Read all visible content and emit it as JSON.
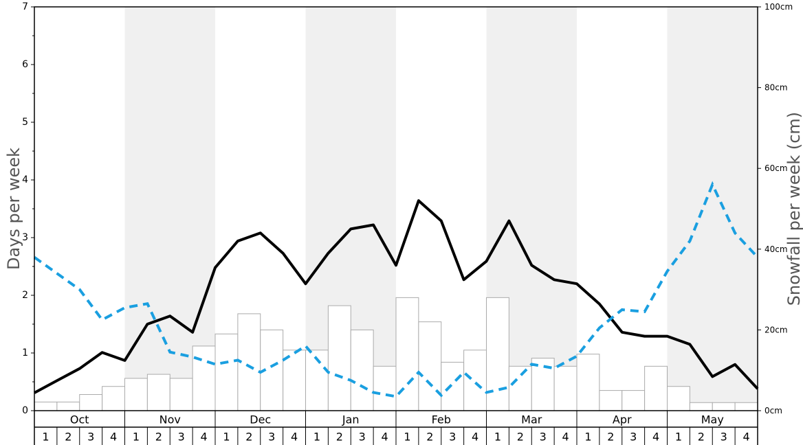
{
  "chart_data": {
    "type": "bar+line",
    "title": "",
    "ylabel_left": "Days per week",
    "ylabel_right": "Snowfall per week (cm)",
    "ylim_left": [
      0,
      7
    ],
    "ylim_right": [
      0,
      100
    ],
    "left_ticks": [
      "0",
      "1",
      "2",
      "3",
      "4",
      "5",
      "6",
      "7"
    ],
    "right_ticks": [
      "0cm",
      "20cm",
      "40cm",
      "60cm",
      "80cm",
      "100cm"
    ],
    "months": [
      "Oct",
      "Nov",
      "Dec",
      "Jan",
      "Feb",
      "Mar",
      "Apr",
      "May"
    ],
    "week_labels": [
      "1",
      "2",
      "3",
      "4"
    ],
    "shaded_months": [
      false,
      true,
      false,
      true,
      false,
      true,
      false,
      true
    ],
    "colors": {
      "bars_fill": "#ffffff",
      "bars_stroke": "#aaaaaa",
      "days_line": "#000000",
      "snow_line": "#1a9fe0",
      "shade": "#f0f0f0"
    },
    "series": [
      {
        "kind": "bar",
        "axis": "left",
        "values": [
          0.15,
          0.15,
          0.28,
          0.42,
          0.56,
          0.63,
          0.56,
          1.12,
          1.33,
          1.68,
          1.4,
          1.05,
          1.05,
          1.82,
          1.4,
          0.77,
          1.96,
          1.54,
          0.84,
          1.05,
          1.96,
          0.77,
          0.91,
          0.77,
          0.98,
          0.35,
          0.35,
          0.77,
          0.42,
          0.14,
          0.14,
          0.14
        ]
      },
      {
        "kind": "line",
        "axis": "left",
        "style": "solid",
        "values": [
          0.31,
          0.52,
          0.73,
          1.01,
          0.87,
          1.5,
          1.64,
          1.36,
          2.48,
          2.94,
          3.08,
          2.73,
          2.2,
          2.73,
          3.15,
          3.22,
          2.52,
          3.64,
          3.29,
          2.27,
          2.59,
          3.29,
          2.52,
          2.27,
          2.2,
          1.85,
          1.36,
          1.29,
          1.29,
          1.15,
          0.59,
          0.8,
          0.38
        ]
      },
      {
        "kind": "line",
        "axis": "right",
        "style": "dashed",
        "values": [
          38,
          34,
          30,
          22.5,
          25.5,
          26.5,
          14.5,
          13.3,
          11.5,
          12.5,
          9.5,
          12.5,
          16,
          9.5,
          7.5,
          4.5,
          3.5,
          9.5,
          3.8,
          9.5,
          4.5,
          5.8,
          11.5,
          10.5,
          13.5,
          20.5,
          25,
          24.5,
          34.5,
          42,
          56,
          44,
          38
        ]
      }
    ]
  }
}
